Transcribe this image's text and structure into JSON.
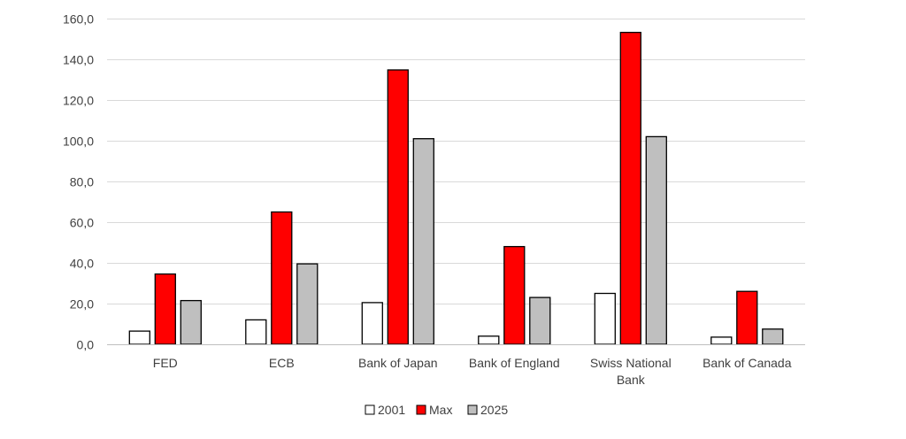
{
  "chart_data": {
    "type": "bar",
    "title": "",
    "xlabel": "",
    "ylabel": "",
    "categories": [
      "FED",
      "ECB",
      "Bank of Japan",
      "Bank of England",
      "Swiss National Bank",
      "Bank of Canada"
    ],
    "category_lines": [
      [
        "FED"
      ],
      [
        "ECB"
      ],
      [
        "Bank of Japan"
      ],
      [
        "Bank of England"
      ],
      [
        "Swiss National",
        "Bank"
      ],
      [
        "Bank of Canada"
      ]
    ],
    "series": [
      {
        "name": "2001",
        "values": [
          6.5,
          12.0,
          20.5,
          4.0,
          25.0,
          3.5
        ],
        "color": "#ffffff",
        "stroke": "#000000"
      },
      {
        "name": "Max",
        "values": [
          34.5,
          65.0,
          134.8,
          48.0,
          153.2,
          26.0
        ],
        "color": "#ff0000",
        "stroke": "#000000"
      },
      {
        "name": "2025",
        "values": [
          21.5,
          39.5,
          101.0,
          23.0,
          102.0,
          7.5
        ],
        "color": "#bfbfbf",
        "stroke": "#000000"
      }
    ],
    "ylim": [
      0,
      160
    ],
    "yticks": [
      0,
      20,
      40,
      60,
      80,
      100,
      120,
      140,
      160
    ],
    "ytick_labels": [
      "0,0",
      "20,0",
      "40,0",
      "60,0",
      "80,0",
      "100,0",
      "120,0",
      "140,0",
      "160,0"
    ],
    "grid": true,
    "gridline_color": "#d9d9d9",
    "legend_position": "bottom"
  }
}
